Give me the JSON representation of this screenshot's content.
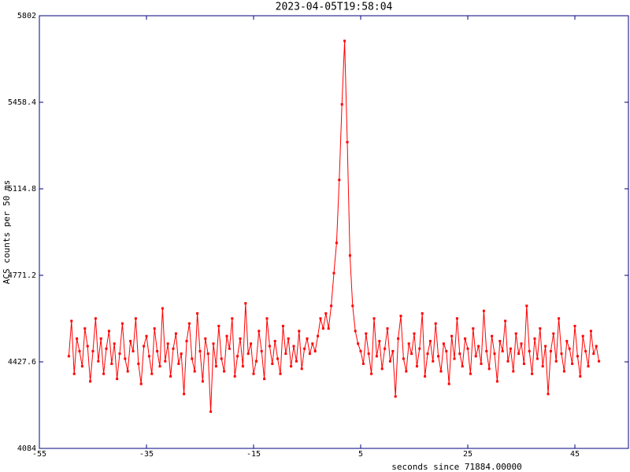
{
  "chart_data": {
    "type": "line",
    "title": "2023-04-05T19:58:04",
    "xlabel": "seconds since 71884.00000",
    "ylabel": "ACS counts per 50 ms",
    "color": "#ff0000",
    "xlim": [
      -55,
      55
    ],
    "xticks": [
      -55,
      -35,
      -15,
      5,
      25,
      45
    ],
    "ylim": [
      4084,
      5802
    ],
    "yticks": [
      4084,
      4427.6,
      4771.2,
      5114.8,
      5458.4,
      5802
    ],
    "x": [
      -49.5,
      -49,
      -48.5,
      -48,
      -47.5,
      -47,
      -46.5,
      -46,
      -45.5,
      -45,
      -44.5,
      -44,
      -43.5,
      -43,
      -42.5,
      -42,
      -41.5,
      -41,
      -40.5,
      -40,
      -39.5,
      -39,
      -38.5,
      -38,
      -37.5,
      -37,
      -36.5,
      -36,
      -35.5,
      -35,
      -34.5,
      -34,
      -33.5,
      -33,
      -32.5,
      -32,
      -31.5,
      -31,
      -30.5,
      -30,
      -29.5,
      -29,
      -28.5,
      -28,
      -27.5,
      -27,
      -26.5,
      -26,
      -25.5,
      -25,
      -24.5,
      -24,
      -23.5,
      -23,
      -22.5,
      -22,
      -21.5,
      -21,
      -20.5,
      -20,
      -19.5,
      -19,
      -18.5,
      -18,
      -17.5,
      -17,
      -16.5,
      -16,
      -15.5,
      -15,
      -14.5,
      -14,
      -13.5,
      -13,
      -12.5,
      -12,
      -11.5,
      -11,
      -10.5,
      -10,
      -9.5,
      -9,
      -8.5,
      -8,
      -7.5,
      -7,
      -6.5,
      -6,
      -5.5,
      -5,
      -4.5,
      -4,
      -3.5,
      -3,
      -2.5,
      -2,
      -1.5,
      -1,
      -0.5,
      0,
      0.5,
      1,
      1.5,
      2,
      2.5,
      3,
      3.5,
      4,
      4.5,
      5,
      5.5,
      6,
      6.5,
      7,
      7.5,
      8,
      8.5,
      9,
      9.5,
      10,
      10.5,
      11,
      11.5,
      12,
      12.5,
      13,
      13.5,
      14,
      14.5,
      15,
      15.5,
      16,
      16.5,
      17,
      17.5,
      18,
      18.5,
      19,
      19.5,
      20,
      20.5,
      21,
      21.5,
      22,
      22.5,
      23,
      23.5,
      24,
      24.5,
      25,
      25.5,
      26,
      26.5,
      27,
      27.5,
      28,
      28.5,
      29,
      29.5,
      30,
      30.5,
      31,
      31.5,
      32,
      32.5,
      33,
      33.5,
      34,
      34.5,
      35,
      35.5,
      36,
      36.5,
      37,
      37.5,
      38,
      38.5,
      39,
      39.5,
      40,
      40.5,
      41,
      41.5,
      42,
      42.5,
      43,
      43.5,
      44,
      44.5,
      45,
      45.5,
      46,
      46.5,
      47,
      47.5,
      48,
      48.5,
      49,
      49.5
    ],
    "values": [
      4450,
      4590,
      4380,
      4520,
      4470,
      4410,
      4560,
      4490,
      4350,
      4470,
      4600,
      4430,
      4520,
      4380,
      4480,
      4550,
      4420,
      4500,
      4360,
      4460,
      4580,
      4440,
      4390,
      4510,
      4470,
      4600,
      4420,
      4340,
      4490,
      4530,
      4450,
      4380,
      4560,
      4470,
      4410,
      4640,
      4430,
      4500,
      4370,
      4480,
      4540,
      4420,
      4460,
      4300,
      4510,
      4580,
      4440,
      4390,
      4620,
      4470,
      4350,
      4520,
      4460,
      4230,
      4500,
      4410,
      4570,
      4440,
      4390,
      4530,
      4480,
      4600,
      4370,
      4450,
      4520,
      4410,
      4660,
      4460,
      4500,
      4380,
      4430,
      4550,
      4470,
      4360,
      4600,
      4490,
      4420,
      4510,
      4440,
      4380,
      4570,
      4460,
      4520,
      4410,
      4490,
      4430,
      4550,
      4400,
      4480,
      4520,
      4460,
      4500,
      4470,
      4530,
      4600,
      4560,
      4620,
      4560,
      4650,
      4780,
      4900,
      5150,
      5450,
      5702,
      5300,
      4850,
      4650,
      4550,
      4500,
      4470,
      4420,
      4540,
      4460,
      4380,
      4600,
      4450,
      4510,
      4400,
      4480,
      4560,
      4430,
      4470,
      4290,
      4520,
      4610,
      4440,
      4390,
      4500,
      4460,
      4540,
      4410,
      4480,
      4620,
      4370,
      4460,
      4510,
      4430,
      4580,
      4450,
      4390,
      4500,
      4470,
      4340,
      4530,
      4440,
      4600,
      4460,
      4410,
      4520,
      4480,
      4380,
      4560,
      4450,
      4490,
      4420,
      4630,
      4470,
      4400,
      4530,
      4460,
      4350,
      4510,
      4470,
      4590,
      4430,
      4480,
      4390,
      4540,
      4460,
      4500,
      4420,
      4650,
      4470,
      4380,
      4520,
      4440,
      4560,
      4410,
      4490,
      4300,
      4470,
      4540,
      4430,
      4600,
      4460,
      4390,
      4510,
      4480,
      4420,
      4570,
      4450,
      4370,
      4530,
      4470,
      4410,
      4550,
      4460,
      4490,
      4430
    ]
  }
}
